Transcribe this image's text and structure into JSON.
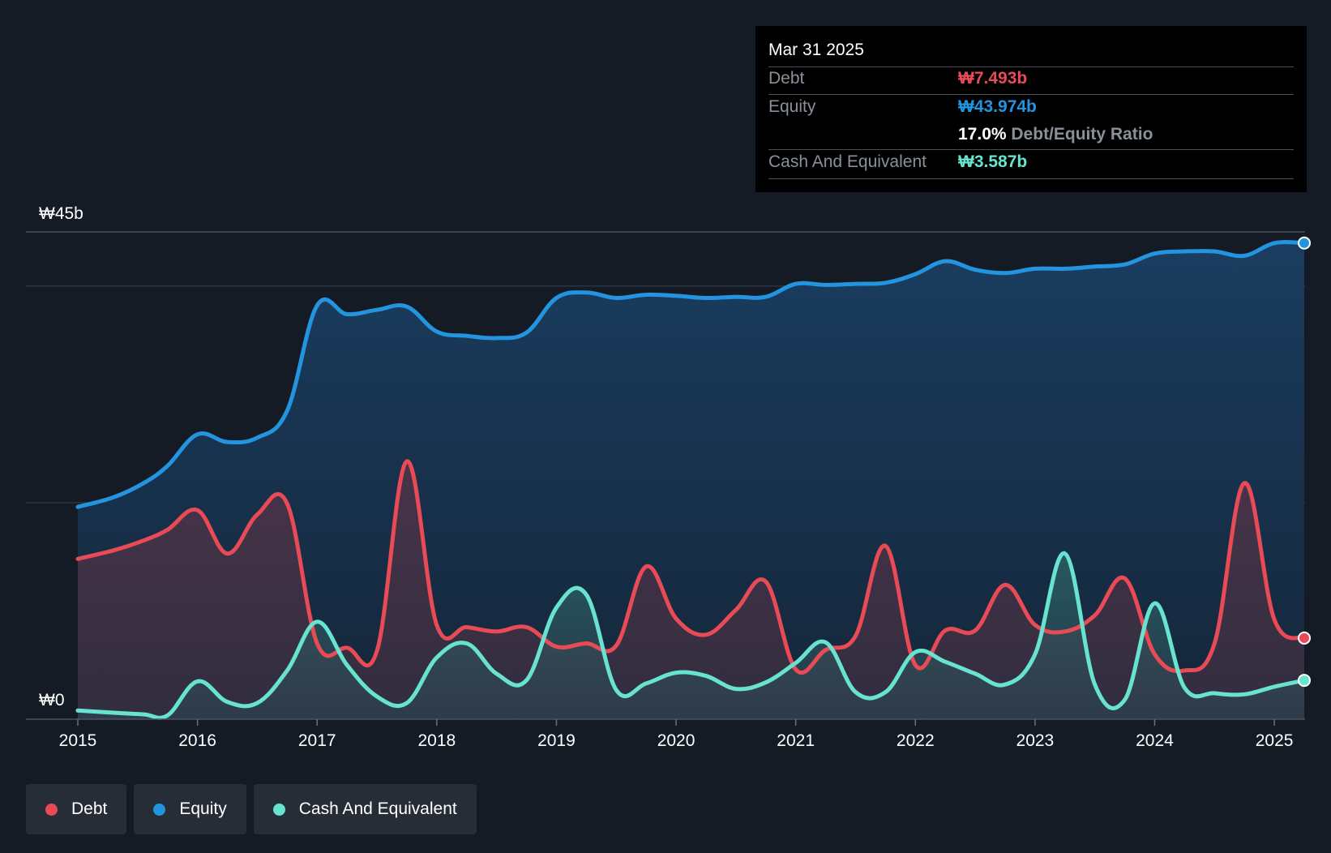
{
  "chart_data": {
    "type": "area",
    "x_ticks": [
      "2015",
      "2016",
      "2017",
      "2018",
      "2019",
      "2020",
      "2021",
      "2022",
      "2023",
      "2024",
      "2025"
    ],
    "y_labels": [
      "₩45b",
      "₩0"
    ],
    "ylim": [
      0,
      45
    ],
    "x_range": [
      2015,
      2025.25
    ],
    "grid": true,
    "series": [
      {
        "name": "Equity",
        "color": "#2394df",
        "values": [
          [
            2015,
            19.6
          ],
          [
            2015.3,
            20.5
          ],
          [
            2015.55,
            21.8
          ],
          [
            2015.75,
            23.4
          ],
          [
            2016,
            26.3
          ],
          [
            2016.25,
            25.6
          ],
          [
            2016.5,
            26.0
          ],
          [
            2016.75,
            28.5
          ],
          [
            2017,
            38.2
          ],
          [
            2017.25,
            37.4
          ],
          [
            2017.5,
            37.8
          ],
          [
            2017.75,
            38.1
          ],
          [
            2018,
            35.8
          ],
          [
            2018.25,
            35.4
          ],
          [
            2018.5,
            35.2
          ],
          [
            2018.75,
            35.7
          ],
          [
            2019,
            38.9
          ],
          [
            2019.25,
            39.4
          ],
          [
            2019.5,
            38.9
          ],
          [
            2019.75,
            39.2
          ],
          [
            2020,
            39.1
          ],
          [
            2020.25,
            38.9
          ],
          [
            2020.5,
            39.0
          ],
          [
            2020.75,
            39.0
          ],
          [
            2021,
            40.2
          ],
          [
            2021.25,
            40.1
          ],
          [
            2021.5,
            40.2
          ],
          [
            2021.75,
            40.3
          ],
          [
            2022,
            41.1
          ],
          [
            2022.25,
            42.3
          ],
          [
            2022.5,
            41.5
          ],
          [
            2022.75,
            41.2
          ],
          [
            2023,
            41.6
          ],
          [
            2023.25,
            41.6
          ],
          [
            2023.5,
            41.8
          ],
          [
            2023.75,
            42.0
          ],
          [
            2024,
            43.0
          ],
          [
            2024.25,
            43.2
          ],
          [
            2024.5,
            43.2
          ],
          [
            2024.75,
            42.8
          ],
          [
            2025,
            43.97
          ],
          [
            2025.25,
            43.974
          ]
        ]
      },
      {
        "name": "Debt",
        "color": "#e84a56",
        "values": [
          [
            2015,
            14.8
          ],
          [
            2015.3,
            15.6
          ],
          [
            2015.55,
            16.5
          ],
          [
            2015.75,
            17.5
          ],
          [
            2016,
            19.3
          ],
          [
            2016.25,
            15.3
          ],
          [
            2016.5,
            18.9
          ],
          [
            2016.75,
            19.9
          ],
          [
            2017,
            7.0
          ],
          [
            2017.25,
            6.6
          ],
          [
            2017.5,
            6.3
          ],
          [
            2017.75,
            23.8
          ],
          [
            2018,
            8.7
          ],
          [
            2018.25,
            8.5
          ],
          [
            2018.5,
            8.1
          ],
          [
            2018.75,
            8.5
          ],
          [
            2019,
            6.7
          ],
          [
            2019.25,
            7.0
          ],
          [
            2019.5,
            6.8
          ],
          [
            2019.75,
            14.1
          ],
          [
            2020,
            9.3
          ],
          [
            2020.25,
            7.8
          ],
          [
            2020.5,
            10.1
          ],
          [
            2020.75,
            12.7
          ],
          [
            2021,
            4.6
          ],
          [
            2021.25,
            6.4
          ],
          [
            2021.5,
            7.7
          ],
          [
            2021.75,
            16.0
          ],
          [
            2022,
            5.0
          ],
          [
            2022.25,
            8.2
          ],
          [
            2022.5,
            8.2
          ],
          [
            2022.75,
            12.4
          ],
          [
            2023,
            8.7
          ],
          [
            2023.25,
            8.1
          ],
          [
            2023.5,
            9.6
          ],
          [
            2023.75,
            13.0
          ],
          [
            2024,
            6.0
          ],
          [
            2024.25,
            4.5
          ],
          [
            2024.5,
            7.0
          ],
          [
            2024.75,
            21.8
          ],
          [
            2025,
            9.2
          ],
          [
            2025.25,
            7.493
          ]
        ]
      },
      {
        "name": "Cash And Equivalent",
        "color": "#67e3d0",
        "values": [
          [
            2015,
            0.8
          ],
          [
            2015.3,
            0.6
          ],
          [
            2015.55,
            0.45
          ],
          [
            2015.75,
            0.35
          ],
          [
            2016,
            3.5
          ],
          [
            2016.25,
            1.6
          ],
          [
            2016.5,
            1.5
          ],
          [
            2016.75,
            4.5
          ],
          [
            2017,
            9.0
          ],
          [
            2017.25,
            5.0
          ],
          [
            2017.5,
            2.1
          ],
          [
            2017.75,
            1.5
          ],
          [
            2018,
            5.7
          ],
          [
            2018.25,
            7.0
          ],
          [
            2018.5,
            4.2
          ],
          [
            2018.75,
            3.6
          ],
          [
            2019,
            10.3
          ],
          [
            2019.25,
            11.5
          ],
          [
            2019.5,
            2.7
          ],
          [
            2019.75,
            3.3
          ],
          [
            2020,
            4.3
          ],
          [
            2020.25,
            4.0
          ],
          [
            2020.5,
            2.8
          ],
          [
            2020.75,
            3.4
          ],
          [
            2021,
            5.2
          ],
          [
            2021.25,
            7.1
          ],
          [
            2021.5,
            2.5
          ],
          [
            2021.75,
            2.5
          ],
          [
            2022,
            6.2
          ],
          [
            2022.25,
            5.3
          ],
          [
            2022.5,
            4.2
          ],
          [
            2022.75,
            3.2
          ],
          [
            2023,
            6.0
          ],
          [
            2023.25,
            15.3
          ],
          [
            2023.5,
            3.2
          ],
          [
            2023.75,
            1.8
          ],
          [
            2024,
            10.7
          ],
          [
            2024.25,
            2.9
          ],
          [
            2024.5,
            2.4
          ],
          [
            2024.75,
            2.3
          ],
          [
            2025,
            3.0
          ],
          [
            2025.25,
            3.587
          ]
        ]
      }
    ]
  },
  "tooltip": {
    "date": "Mar 31 2025",
    "rows": [
      {
        "label": "Debt",
        "value": "₩7.493b",
        "color": "#e84a56"
      },
      {
        "label": "Equity",
        "value": "₩43.974b",
        "color": "#2394df"
      },
      {
        "label": "",
        "ratio_value": "17.0%",
        "ratio_label": "Debt/Equity Ratio"
      },
      {
        "label": "Cash And Equivalent",
        "value": "₩3.587b",
        "color": "#67e3d0"
      }
    ]
  },
  "legend": [
    {
      "label": "Debt",
      "color": "#e84a56"
    },
    {
      "label": "Equity",
      "color": "#2394df"
    },
    {
      "label": "Cash And Equivalent",
      "color": "#67e3d0"
    }
  ]
}
